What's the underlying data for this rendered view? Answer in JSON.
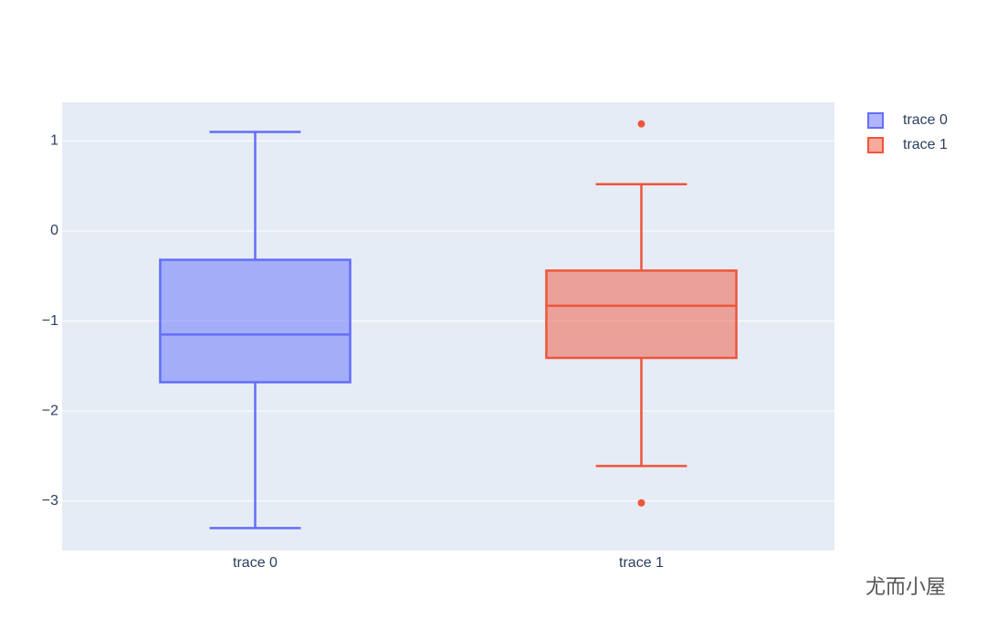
{
  "chart_data": {
    "type": "box",
    "series": [
      {
        "name": "trace 0",
        "color": "#636efa",
        "lowerfence": -3.3,
        "q1": -1.68,
        "median": -1.15,
        "q3": -0.32,
        "upperfence": 1.1,
        "outliers": []
      },
      {
        "name": "trace 1",
        "color": "#ef553b",
        "lowerfence": -2.61,
        "q1": -1.41,
        "median": -0.83,
        "q3": -0.44,
        "upperfence": 0.52,
        "outliers": [
          1.19,
          -3.02
        ]
      }
    ],
    "ylim": [
      -3.55,
      1.43
    ],
    "yticks": [
      1,
      0,
      {
        "value": -1,
        "label": "−1"
      },
      {
        "value": -2,
        "label": "−2"
      },
      {
        "value": -3,
        "label": "−3"
      }
    ],
    "grid": true,
    "legend": "top-right",
    "watermark": "尤而小屋"
  }
}
